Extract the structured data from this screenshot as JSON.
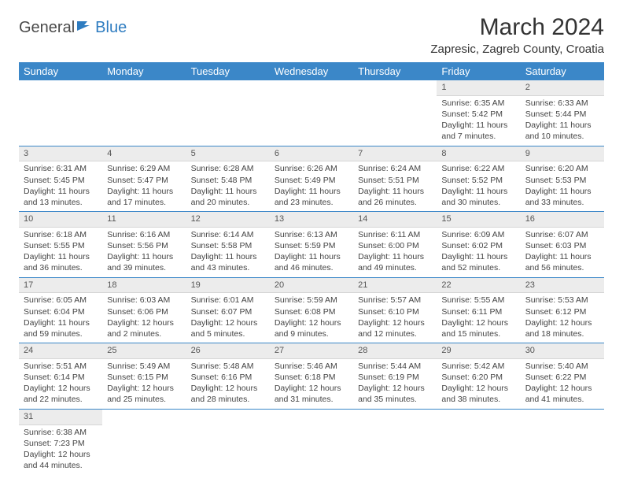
{
  "logo": {
    "text1": "General",
    "text2": "Blue"
  },
  "title": "March 2024",
  "location": "Zapresic, Zagreb County, Croatia",
  "colors": {
    "header_bg": "#3b87c8",
    "header_fg": "#ffffff",
    "daynum_bg": "#ececec",
    "accent": "#2e7cc0"
  },
  "weekdays": [
    "Sunday",
    "Monday",
    "Tuesday",
    "Wednesday",
    "Thursday",
    "Friday",
    "Saturday"
  ],
  "weeks": [
    [
      null,
      null,
      null,
      null,
      null,
      {
        "n": "1",
        "sr": "Sunrise: 6:35 AM",
        "ss": "Sunset: 5:42 PM",
        "dl": "Daylight: 11 hours and 7 minutes."
      },
      {
        "n": "2",
        "sr": "Sunrise: 6:33 AM",
        "ss": "Sunset: 5:44 PM",
        "dl": "Daylight: 11 hours and 10 minutes."
      }
    ],
    [
      {
        "n": "3",
        "sr": "Sunrise: 6:31 AM",
        "ss": "Sunset: 5:45 PM",
        "dl": "Daylight: 11 hours and 13 minutes."
      },
      {
        "n": "4",
        "sr": "Sunrise: 6:29 AM",
        "ss": "Sunset: 5:47 PM",
        "dl": "Daylight: 11 hours and 17 minutes."
      },
      {
        "n": "5",
        "sr": "Sunrise: 6:28 AM",
        "ss": "Sunset: 5:48 PM",
        "dl": "Daylight: 11 hours and 20 minutes."
      },
      {
        "n": "6",
        "sr": "Sunrise: 6:26 AM",
        "ss": "Sunset: 5:49 PM",
        "dl": "Daylight: 11 hours and 23 minutes."
      },
      {
        "n": "7",
        "sr": "Sunrise: 6:24 AM",
        "ss": "Sunset: 5:51 PM",
        "dl": "Daylight: 11 hours and 26 minutes."
      },
      {
        "n": "8",
        "sr": "Sunrise: 6:22 AM",
        "ss": "Sunset: 5:52 PM",
        "dl": "Daylight: 11 hours and 30 minutes."
      },
      {
        "n": "9",
        "sr": "Sunrise: 6:20 AM",
        "ss": "Sunset: 5:53 PM",
        "dl": "Daylight: 11 hours and 33 minutes."
      }
    ],
    [
      {
        "n": "10",
        "sr": "Sunrise: 6:18 AM",
        "ss": "Sunset: 5:55 PM",
        "dl": "Daylight: 11 hours and 36 minutes."
      },
      {
        "n": "11",
        "sr": "Sunrise: 6:16 AM",
        "ss": "Sunset: 5:56 PM",
        "dl": "Daylight: 11 hours and 39 minutes."
      },
      {
        "n": "12",
        "sr": "Sunrise: 6:14 AM",
        "ss": "Sunset: 5:58 PM",
        "dl": "Daylight: 11 hours and 43 minutes."
      },
      {
        "n": "13",
        "sr": "Sunrise: 6:13 AM",
        "ss": "Sunset: 5:59 PM",
        "dl": "Daylight: 11 hours and 46 minutes."
      },
      {
        "n": "14",
        "sr": "Sunrise: 6:11 AM",
        "ss": "Sunset: 6:00 PM",
        "dl": "Daylight: 11 hours and 49 minutes."
      },
      {
        "n": "15",
        "sr": "Sunrise: 6:09 AM",
        "ss": "Sunset: 6:02 PM",
        "dl": "Daylight: 11 hours and 52 minutes."
      },
      {
        "n": "16",
        "sr": "Sunrise: 6:07 AM",
        "ss": "Sunset: 6:03 PM",
        "dl": "Daylight: 11 hours and 56 minutes."
      }
    ],
    [
      {
        "n": "17",
        "sr": "Sunrise: 6:05 AM",
        "ss": "Sunset: 6:04 PM",
        "dl": "Daylight: 11 hours and 59 minutes."
      },
      {
        "n": "18",
        "sr": "Sunrise: 6:03 AM",
        "ss": "Sunset: 6:06 PM",
        "dl": "Daylight: 12 hours and 2 minutes."
      },
      {
        "n": "19",
        "sr": "Sunrise: 6:01 AM",
        "ss": "Sunset: 6:07 PM",
        "dl": "Daylight: 12 hours and 5 minutes."
      },
      {
        "n": "20",
        "sr": "Sunrise: 5:59 AM",
        "ss": "Sunset: 6:08 PM",
        "dl": "Daylight: 12 hours and 9 minutes."
      },
      {
        "n": "21",
        "sr": "Sunrise: 5:57 AM",
        "ss": "Sunset: 6:10 PM",
        "dl": "Daylight: 12 hours and 12 minutes."
      },
      {
        "n": "22",
        "sr": "Sunrise: 5:55 AM",
        "ss": "Sunset: 6:11 PM",
        "dl": "Daylight: 12 hours and 15 minutes."
      },
      {
        "n": "23",
        "sr": "Sunrise: 5:53 AM",
        "ss": "Sunset: 6:12 PM",
        "dl": "Daylight: 12 hours and 18 minutes."
      }
    ],
    [
      {
        "n": "24",
        "sr": "Sunrise: 5:51 AM",
        "ss": "Sunset: 6:14 PM",
        "dl": "Daylight: 12 hours and 22 minutes."
      },
      {
        "n": "25",
        "sr": "Sunrise: 5:49 AM",
        "ss": "Sunset: 6:15 PM",
        "dl": "Daylight: 12 hours and 25 minutes."
      },
      {
        "n": "26",
        "sr": "Sunrise: 5:48 AM",
        "ss": "Sunset: 6:16 PM",
        "dl": "Daylight: 12 hours and 28 minutes."
      },
      {
        "n": "27",
        "sr": "Sunrise: 5:46 AM",
        "ss": "Sunset: 6:18 PM",
        "dl": "Daylight: 12 hours and 31 minutes."
      },
      {
        "n": "28",
        "sr": "Sunrise: 5:44 AM",
        "ss": "Sunset: 6:19 PM",
        "dl": "Daylight: 12 hours and 35 minutes."
      },
      {
        "n": "29",
        "sr": "Sunrise: 5:42 AM",
        "ss": "Sunset: 6:20 PM",
        "dl": "Daylight: 12 hours and 38 minutes."
      },
      {
        "n": "30",
        "sr": "Sunrise: 5:40 AM",
        "ss": "Sunset: 6:22 PM",
        "dl": "Daylight: 12 hours and 41 minutes."
      }
    ],
    [
      {
        "n": "31",
        "sr": "Sunrise: 6:38 AM",
        "ss": "Sunset: 7:23 PM",
        "dl": "Daylight: 12 hours and 44 minutes."
      },
      null,
      null,
      null,
      null,
      null,
      null
    ]
  ]
}
